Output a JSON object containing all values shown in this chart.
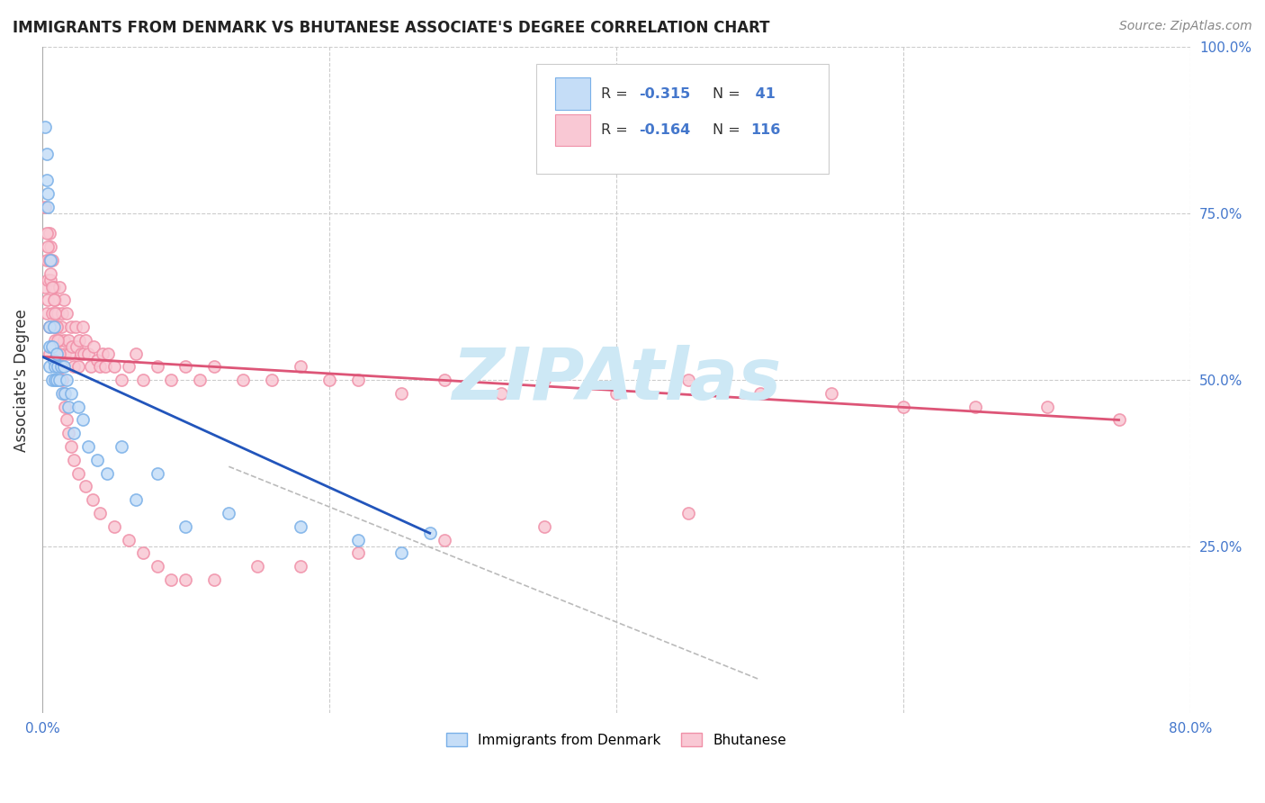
{
  "title": "IMMIGRANTS FROM DENMARK VS BHUTANESE ASSOCIATE'S DEGREE CORRELATION CHART",
  "source": "Source: ZipAtlas.com",
  "ylabel": "Associate's Degree",
  "x_min": 0.0,
  "x_max": 0.8,
  "y_min": 0.0,
  "y_max": 1.0,
  "legend_r1": "R = -0.315",
  "legend_n1": "N =  41",
  "legend_r2": "R = -0.164",
  "legend_n2": "N = 116",
  "denmark_face_color": "#c5ddf7",
  "denmark_edge_color": "#7ab0e8",
  "bhutan_face_color": "#f9c8d4",
  "bhutan_edge_color": "#f090a8",
  "denmark_line_color": "#2255bb",
  "bhutan_line_color": "#dd5577",
  "dashed_line_color": "#bbbbbb",
  "text_color_blue": "#4477cc",
  "watermark_color": "#cde8f5",
  "dk_x": [
    0.002,
    0.003,
    0.003,
    0.004,
    0.004,
    0.005,
    0.005,
    0.005,
    0.006,
    0.007,
    0.007,
    0.008,
    0.008,
    0.009,
    0.009,
    0.01,
    0.01,
    0.011,
    0.012,
    0.013,
    0.014,
    0.015,
    0.016,
    0.017,
    0.018,
    0.02,
    0.022,
    0.025,
    0.028,
    0.032,
    0.038,
    0.045,
    0.055,
    0.065,
    0.08,
    0.1,
    0.13,
    0.18,
    0.22,
    0.25,
    0.27
  ],
  "dk_y": [
    0.88,
    0.84,
    0.8,
    0.76,
    0.78,
    0.55,
    0.58,
    0.52,
    0.68,
    0.55,
    0.5,
    0.58,
    0.53,
    0.52,
    0.5,
    0.54,
    0.5,
    0.52,
    0.5,
    0.52,
    0.48,
    0.52,
    0.48,
    0.5,
    0.46,
    0.48,
    0.42,
    0.46,
    0.44,
    0.4,
    0.38,
    0.36,
    0.4,
    0.32,
    0.36,
    0.28,
    0.3,
    0.28,
    0.26,
    0.24,
    0.27
  ],
  "bh_x": [
    0.002,
    0.003,
    0.003,
    0.004,
    0.004,
    0.005,
    0.005,
    0.005,
    0.006,
    0.006,
    0.007,
    0.007,
    0.008,
    0.008,
    0.009,
    0.009,
    0.01,
    0.01,
    0.011,
    0.012,
    0.012,
    0.013,
    0.013,
    0.014,
    0.015,
    0.015,
    0.016,
    0.017,
    0.018,
    0.019,
    0.02,
    0.021,
    0.022,
    0.023,
    0.024,
    0.025,
    0.026,
    0.027,
    0.028,
    0.029,
    0.03,
    0.032,
    0.034,
    0.036,
    0.038,
    0.04,
    0.042,
    0.044,
    0.046,
    0.05,
    0.055,
    0.06,
    0.065,
    0.07,
    0.08,
    0.09,
    0.1,
    0.11,
    0.12,
    0.14,
    0.16,
    0.18,
    0.2,
    0.22,
    0.25,
    0.28,
    0.32,
    0.35,
    0.4,
    0.45,
    0.5,
    0.55,
    0.6,
    0.65,
    0.7,
    0.75,
    0.002,
    0.003,
    0.004,
    0.005,
    0.006,
    0.007,
    0.008,
    0.009,
    0.01,
    0.011,
    0.012,
    0.013,
    0.014,
    0.015,
    0.016,
    0.017,
    0.018,
    0.02,
    0.022,
    0.025,
    0.03,
    0.035,
    0.04,
    0.05,
    0.06,
    0.07,
    0.08,
    0.09,
    0.1,
    0.12,
    0.15,
    0.18,
    0.22,
    0.28,
    0.35,
    0.45
  ],
  "bh_y": [
    0.64,
    0.68,
    0.6,
    0.62,
    0.65,
    0.58,
    0.72,
    0.54,
    0.7,
    0.65,
    0.68,
    0.6,
    0.64,
    0.58,
    0.62,
    0.56,
    0.58,
    0.54,
    0.6,
    0.56,
    0.64,
    0.58,
    0.52,
    0.6,
    0.62,
    0.56,
    0.54,
    0.6,
    0.56,
    0.54,
    0.58,
    0.55,
    0.52,
    0.58,
    0.55,
    0.52,
    0.56,
    0.54,
    0.58,
    0.54,
    0.56,
    0.54,
    0.52,
    0.55,
    0.53,
    0.52,
    0.54,
    0.52,
    0.54,
    0.52,
    0.5,
    0.52,
    0.54,
    0.5,
    0.52,
    0.5,
    0.52,
    0.5,
    0.52,
    0.5,
    0.5,
    0.52,
    0.5,
    0.5,
    0.48,
    0.5,
    0.48,
    0.5,
    0.48,
    0.5,
    0.48,
    0.48,
    0.46,
    0.46,
    0.46,
    0.44,
    0.76,
    0.72,
    0.7,
    0.68,
    0.66,
    0.64,
    0.62,
    0.6,
    0.58,
    0.56,
    0.54,
    0.52,
    0.5,
    0.48,
    0.46,
    0.44,
    0.42,
    0.4,
    0.38,
    0.36,
    0.34,
    0.32,
    0.3,
    0.28,
    0.26,
    0.24,
    0.22,
    0.2,
    0.2,
    0.2,
    0.22,
    0.22,
    0.24,
    0.26,
    0.28,
    0.3
  ],
  "dk_trend_x": [
    0.0,
    0.27
  ],
  "dk_trend_y": [
    0.535,
    0.27
  ],
  "bh_trend_x": [
    0.0,
    0.75
  ],
  "bh_trend_y": [
    0.535,
    0.44
  ],
  "dash_trend_x": [
    0.13,
    0.5
  ],
  "dash_trend_y": [
    0.37,
    0.05
  ]
}
